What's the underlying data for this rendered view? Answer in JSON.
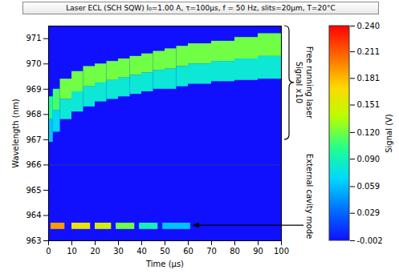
{
  "chart_data": {
    "type": "heatmap",
    "title": "Laser  ECL (SCH SQW) I₀=1.00 A, τ=100µs, f = 50 Hz, slits=20µm, T=20°C",
    "x_label": "Time (µs)",
    "y_label": "Wavelength (nm)",
    "xlim": [
      0,
      100
    ],
    "xticks": [
      0,
      10,
      20,
      30,
      40,
      50,
      60,
      70,
      80,
      90,
      100
    ],
    "ylim": [
      963,
      971.5
    ],
    "yticks": [
      963,
      964,
      965,
      966,
      967,
      968,
      969,
      970,
      971
    ],
    "colorbar": {
      "label": "Signal (V)",
      "range": [
        -0.002,
        0.24
      ],
      "ticks": [
        -0.002,
        0.029,
        0.059,
        {
          "value": 0.09,
          "label": "0.090"
        },
        {
          "value": 0.12,
          "label": "0.120"
        },
        0.151,
        0.181,
        0.211,
        {
          "value": 0.24,
          "label": "0.240"
        }
      ]
    },
    "separator_wavelength": 966,
    "cells": [
      {
        "t": [
          0,
          2
        ],
        "wl": [
          966.9,
          967.8
        ],
        "value": 0.06
      },
      {
        "t": [
          0,
          2
        ],
        "wl": [
          967.8,
          968.7
        ],
        "value": 0.1
      },
      {
        "t": [
          2,
          5
        ],
        "wl": [
          967.3,
          968.15
        ],
        "value": 0.07
      },
      {
        "t": [
          2,
          5
        ],
        "wl": [
          968.15,
          969.0
        ],
        "value": 0.11
      },
      {
        "t": [
          5,
          10
        ],
        "wl": [
          967.8,
          968.6
        ],
        "value": 0.08
      },
      {
        "t": [
          5,
          10
        ],
        "wl": [
          968.6,
          969.4
        ],
        "value": 0.12
      },
      {
        "t": [
          10,
          15
        ],
        "wl": [
          968.1,
          968.9
        ],
        "value": 0.08
      },
      {
        "t": [
          10,
          15
        ],
        "wl": [
          968.9,
          969.7
        ],
        "value": 0.12
      },
      {
        "t": [
          15,
          20
        ],
        "wl": [
          968.3,
          969.1
        ],
        "value": 0.08
      },
      {
        "t": [
          15,
          20
        ],
        "wl": [
          969.1,
          969.9
        ],
        "value": 0.12
      },
      {
        "t": [
          20,
          25
        ],
        "wl": [
          968.5,
          969.25
        ],
        "value": 0.08
      },
      {
        "t": [
          20,
          25
        ],
        "wl": [
          969.25,
          970.0
        ],
        "value": 0.12
      },
      {
        "t": [
          25,
          30
        ],
        "wl": [
          968.6,
          969.35
        ],
        "value": 0.08
      },
      {
        "t": [
          25,
          30
        ],
        "wl": [
          969.35,
          970.1
        ],
        "value": 0.12
      },
      {
        "t": [
          30,
          35
        ],
        "wl": [
          968.7,
          969.45
        ],
        "value": 0.08
      },
      {
        "t": [
          30,
          35
        ],
        "wl": [
          969.45,
          970.2
        ],
        "value": 0.12
      },
      {
        "t": [
          35,
          40
        ],
        "wl": [
          968.8,
          969.55
        ],
        "value": 0.08
      },
      {
        "t": [
          35,
          40
        ],
        "wl": [
          969.55,
          970.3
        ],
        "value": 0.12
      },
      {
        "t": [
          40,
          45
        ],
        "wl": [
          968.9,
          969.65
        ],
        "value": 0.08
      },
      {
        "t": [
          40,
          45
        ],
        "wl": [
          969.65,
          970.4
        ],
        "value": 0.12
      },
      {
        "t": [
          45,
          50
        ],
        "wl": [
          969.0,
          969.75
        ],
        "value": 0.08
      },
      {
        "t": [
          45,
          50
        ],
        "wl": [
          969.75,
          970.5
        ],
        "value": 0.12
      },
      {
        "t": [
          50,
          55
        ],
        "wl": [
          969.0,
          969.8
        ],
        "value": 0.08
      },
      {
        "t": [
          50,
          55
        ],
        "wl": [
          969.8,
          970.6
        ],
        "value": 0.12
      },
      {
        "t": [
          55,
          60
        ],
        "wl": [
          969.1,
          969.9
        ],
        "value": 0.08
      },
      {
        "t": [
          55,
          60
        ],
        "wl": [
          969.9,
          970.7
        ],
        "value": 0.12
      },
      {
        "t": [
          60,
          70
        ],
        "wl": [
          969.2,
          970.0
        ],
        "value": 0.08
      },
      {
        "t": [
          60,
          70
        ],
        "wl": [
          970.0,
          970.8
        ],
        "value": 0.12
      },
      {
        "t": [
          70,
          80
        ],
        "wl": [
          969.3,
          970.1
        ],
        "value": 0.08
      },
      {
        "t": [
          70,
          80
        ],
        "wl": [
          970.1,
          970.9
        ],
        "value": 0.12
      },
      {
        "t": [
          80,
          90
        ],
        "wl": [
          969.35,
          970.2
        ],
        "value": 0.08
      },
      {
        "t": [
          80,
          90
        ],
        "wl": [
          970.2,
          971.05
        ],
        "value": 0.12
      },
      {
        "t": [
          90,
          100
        ],
        "wl": [
          969.4,
          970.3
        ],
        "value": 0.08
      },
      {
        "t": [
          90,
          100
        ],
        "wl": [
          970.3,
          971.2
        ],
        "value": 0.12
      },
      {
        "t": [
          1,
          7
        ],
        "wl": [
          963.45,
          963.7
        ],
        "value": 0.19
      },
      {
        "t": [
          10,
          18
        ],
        "wl": [
          963.45,
          963.7
        ],
        "value": 0.16
      },
      {
        "t": [
          20,
          27
        ],
        "wl": [
          963.45,
          963.7
        ],
        "value": 0.15
      },
      {
        "t": [
          29,
          37
        ],
        "wl": [
          963.45,
          963.7
        ],
        "value": 0.12
      },
      {
        "t": [
          39,
          47
        ],
        "wl": [
          963.45,
          963.7
        ],
        "value": 0.09
      },
      {
        "t": [
          49,
          61
        ],
        "wl": [
          963.45,
          963.7
        ],
        "value": 0.06
      }
    ],
    "annotations": [
      {
        "text": [
          "Free running laser",
          "Signal x10"
        ],
        "y_range": [
          967,
          971.5
        ]
      },
      {
        "text": "External cavity mode",
        "x": 62,
        "y": 963.6
      }
    ]
  }
}
